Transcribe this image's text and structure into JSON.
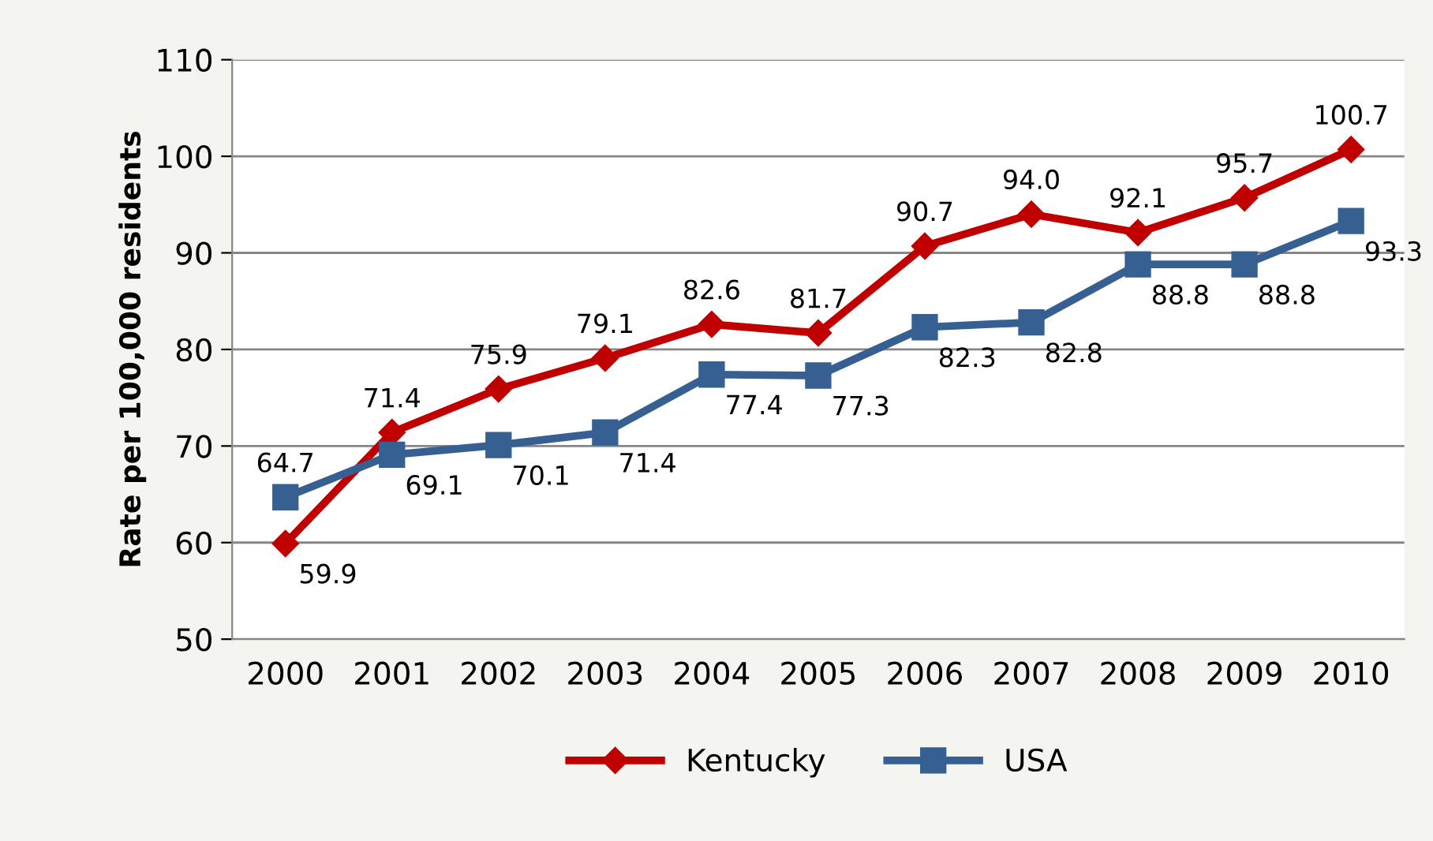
{
  "chart_data": {
    "type": "line",
    "ylabel": "Rate per 100,000 residents",
    "categories": [
      "2000",
      "2001",
      "2002",
      "2003",
      "2004",
      "2005",
      "2006",
      "2007",
      "2008",
      "2009",
      "2010"
    ],
    "series": [
      {
        "name": "Kentucky",
        "color": "#c00000",
        "marker": "diamond",
        "values": [
          59.9,
          71.4,
          75.9,
          79.1,
          82.6,
          81.7,
          90.7,
          94.0,
          92.1,
          95.7,
          100.7
        ],
        "value_labels": [
          "59.9",
          "71.4",
          "75.9",
          "79.1",
          "82.6",
          "81.7",
          "90.7",
          "94.0",
          "92.1",
          "95.7",
          "100.7"
        ]
      },
      {
        "name": "USA",
        "color": "#376092",
        "marker": "square",
        "values": [
          64.7,
          69.1,
          70.1,
          71.4,
          77.4,
          77.3,
          82.3,
          82.8,
          88.8,
          88.8,
          93.3
        ],
        "value_labels": [
          "64.7",
          "69.1",
          "70.1",
          "71.4",
          "77.4",
          "77.3",
          "82.3",
          "82.8",
          "88.8",
          "88.8",
          "93.3"
        ]
      }
    ],
    "ylim": [
      50,
      110
    ],
    "yticks": [
      50,
      60,
      70,
      80,
      90,
      100,
      110
    ],
    "grid": "y",
    "legend": "bottom",
    "line_style": "solid"
  }
}
